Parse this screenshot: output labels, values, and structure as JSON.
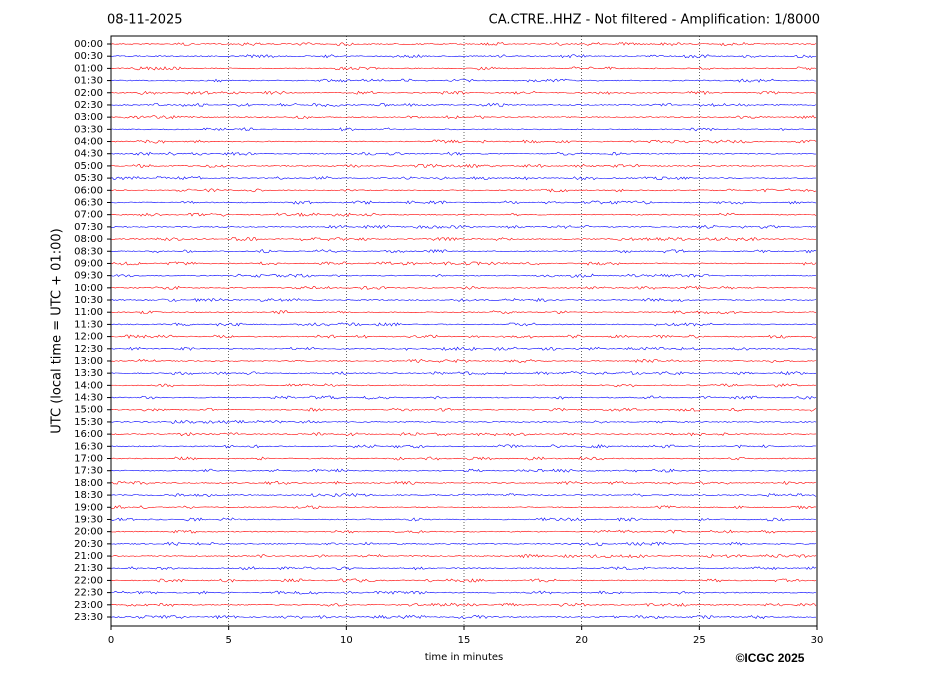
{
  "chart_data": {
    "type": "seismogram",
    "title": "08-11-2025",
    "subtitle": "CA.CTRE..HHZ - Not filtered - Amplification: 1/8000",
    "xlabel": "time in minutes",
    "ylabel": "UTC (local time = UTC + 01:00)",
    "credit": "©ICGC 2025",
    "categories": [
      "00:00",
      "00:30",
      "01:00",
      "01:30",
      "02:00",
      "02:30",
      "03:00",
      "03:30",
      "04:00",
      "04:30",
      "05:00",
      "05:30",
      "06:00",
      "06:30",
      "07:00",
      "07:30",
      "08:00",
      "08:30",
      "09:00",
      "09:30",
      "10:00",
      "10:30",
      "11:00",
      "11:30",
      "12:00",
      "12:30",
      "13:00",
      "13:30",
      "14:00",
      "14:30",
      "15:00",
      "15:30",
      "16:00",
      "16:30",
      "17:00",
      "17:30",
      "18:00",
      "18:30",
      "19:00",
      "19:30",
      "20:00",
      "20:30",
      "21:00",
      "21:30",
      "22:00",
      "22:30",
      "23:00",
      "23:30"
    ],
    "colors": [
      "#ff0000",
      "#0000ff"
    ],
    "xlim": [
      0,
      30
    ],
    "xticks": [
      0,
      5,
      10,
      15,
      20,
      25,
      30
    ],
    "grid": true
  }
}
